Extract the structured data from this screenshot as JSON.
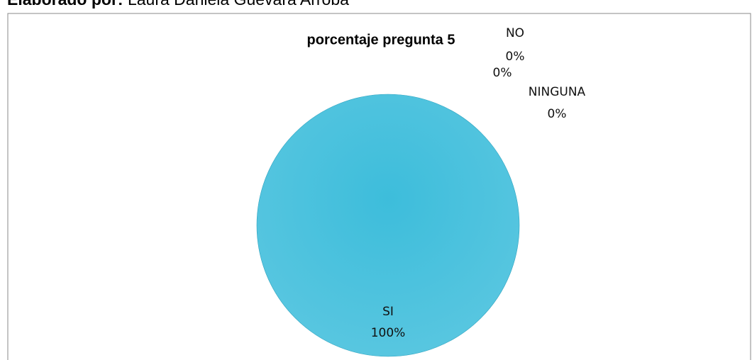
{
  "caption": {
    "label": "Elaborado por:",
    "text": "Laura Daniela Guevara Arroba"
  },
  "chart_data": {
    "type": "pie",
    "title": "porcentaje pregunta 5",
    "categories": [
      "SI",
      "NO",
      null,
      "NINGUNA"
    ],
    "values": [
      100,
      0,
      0,
      0
    ],
    "value_labels": [
      "100%",
      "0%",
      "0%",
      "0%"
    ],
    "colors": [
      "#3dbddb",
      "#c0504d",
      "#9bbb59",
      "#8064a2"
    ]
  }
}
